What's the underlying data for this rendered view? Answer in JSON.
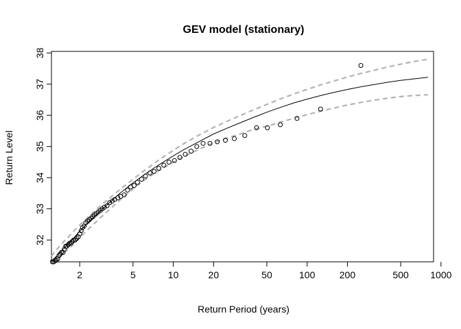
{
  "chart_data": {
    "type": "scatter",
    "title": "GEV model (stationary)",
    "xlabel": "Return Period (years)",
    "ylabel": "Return Level",
    "x_scale": "log",
    "xlim": [
      1.23,
      880
    ],
    "ylim": [
      31.3,
      38.05
    ],
    "x_ticks": [
      2,
      5,
      10,
      20,
      50,
      100,
      200,
      500,
      1000
    ],
    "x_tick_labels": [
      "2",
      "5",
      "10",
      "20",
      "50",
      "100",
      "200",
      "500",
      "1000"
    ],
    "y_ticks": [
      32,
      33,
      34,
      35,
      36,
      37,
      38
    ],
    "y_tick_labels": [
      "32",
      "33",
      "34",
      "35",
      "36",
      "37",
      "38"
    ],
    "grid": false,
    "legend": "none",
    "colors": {
      "fit": "#000000",
      "ci": "#b3b3b3",
      "points": "#000000"
    },
    "fit_line": {
      "x": [
        1.23,
        1.3,
        1.5,
        1.75,
        2,
        2.5,
        3,
        4,
        5,
        6,
        7,
        8,
        10,
        12,
        15,
        20,
        25,
        30,
        40,
        50,
        60,
        80,
        100,
        125,
        150,
        200,
        250,
        300,
        400,
        500,
        600,
        800
      ],
      "y": [
        31.3,
        31.42,
        31.7,
        32.0,
        32.28,
        32.7,
        33.02,
        33.5,
        33.83,
        34.08,
        34.28,
        34.44,
        34.7,
        34.9,
        35.12,
        35.4,
        35.58,
        35.72,
        35.94,
        36.1,
        36.22,
        36.4,
        36.52,
        36.63,
        36.71,
        36.83,
        36.91,
        36.97,
        37.06,
        37.12,
        37.16,
        37.22
      ]
    },
    "ci_upper": {
      "x": [
        1.23,
        1.3,
        1.5,
        1.75,
        2,
        2.5,
        3,
        4,
        5,
        6,
        7,
        8,
        10,
        12,
        15,
        20,
        25,
        30,
        40,
        50,
        60,
        80,
        100,
        125,
        150,
        200,
        250,
        300,
        400,
        500,
        600,
        800
      ],
      "y": [
        31.48,
        31.62,
        31.92,
        32.22,
        32.48,
        32.87,
        33.18,
        33.62,
        33.95,
        34.21,
        34.42,
        34.6,
        34.88,
        35.09,
        35.33,
        35.61,
        35.8,
        35.95,
        36.18,
        36.35,
        36.49,
        36.69,
        36.83,
        36.97,
        37.07,
        37.23,
        37.34,
        37.42,
        37.55,
        37.64,
        37.71,
        37.8
      ]
    },
    "ci_lower": {
      "x": [
        1.23,
        1.3,
        1.5,
        1.75,
        2,
        2.5,
        3,
        4,
        5,
        6,
        7,
        8,
        10,
        12,
        15,
        20,
        25,
        30,
        40,
        50,
        60,
        80,
        100,
        125,
        150,
        200,
        250,
        300,
        400,
        500,
        600,
        800
      ],
      "y": [
        31.28,
        31.3,
        31.55,
        31.82,
        32.08,
        32.48,
        32.8,
        33.28,
        33.64,
        33.9,
        34.1,
        34.26,
        34.5,
        34.68,
        34.88,
        35.12,
        35.27,
        35.37,
        35.55,
        35.65,
        35.75,
        35.91,
        36.02,
        36.13,
        36.21,
        36.33,
        36.41,
        36.47,
        36.55,
        36.6,
        36.63,
        36.66
      ]
    },
    "points": {
      "x": [
        1.25,
        1.28,
        1.31,
        1.34,
        1.37,
        1.4,
        1.43,
        1.46,
        1.5,
        1.53,
        1.57,
        1.6,
        1.64,
        1.68,
        1.72,
        1.76,
        1.8,
        1.85,
        1.9,
        1.95,
        2.0,
        2.05,
        2.1,
        2.16,
        2.22,
        2.29,
        2.36,
        2.43,
        2.5,
        2.58,
        2.66,
        2.75,
        2.85,
        2.95,
        3.05,
        3.2,
        3.35,
        3.5,
        3.65,
        3.85,
        4.05,
        4.3,
        4.55,
        4.8,
        5.1,
        5.4,
        5.8,
        6.2,
        6.7,
        7.2,
        7.8,
        8.5,
        9.3,
        10.2,
        11.2,
        12.3,
        13.6,
        15.0,
        16.7,
        18.8,
        21.3,
        24.5,
        28.6,
        34.2,
        41.9,
        50.5,
        63.0,
        84.0,
        126.0,
        252.0
      ],
      "y": [
        31.3,
        31.3,
        31.35,
        31.35,
        31.4,
        31.5,
        31.55,
        31.6,
        31.6,
        31.7,
        31.8,
        31.8,
        31.85,
        31.9,
        31.9,
        31.95,
        32.0,
        32.0,
        32.05,
        32.1,
        32.2,
        32.3,
        32.4,
        32.45,
        32.55,
        32.6,
        32.65,
        32.7,
        32.75,
        32.8,
        32.85,
        32.9,
        32.95,
        33.0,
        33.05,
        33.1,
        33.2,
        33.25,
        33.3,
        33.35,
        33.4,
        33.45,
        33.6,
        33.7,
        33.75,
        33.85,
        33.95,
        34.05,
        34.15,
        34.2,
        34.3,
        34.4,
        34.5,
        34.55,
        34.65,
        34.75,
        34.85,
        35.0,
        35.1,
        35.1,
        35.15,
        35.2,
        35.25,
        35.35,
        35.6,
        35.6,
        35.7,
        35.9,
        36.2,
        37.6
      ]
    }
  }
}
